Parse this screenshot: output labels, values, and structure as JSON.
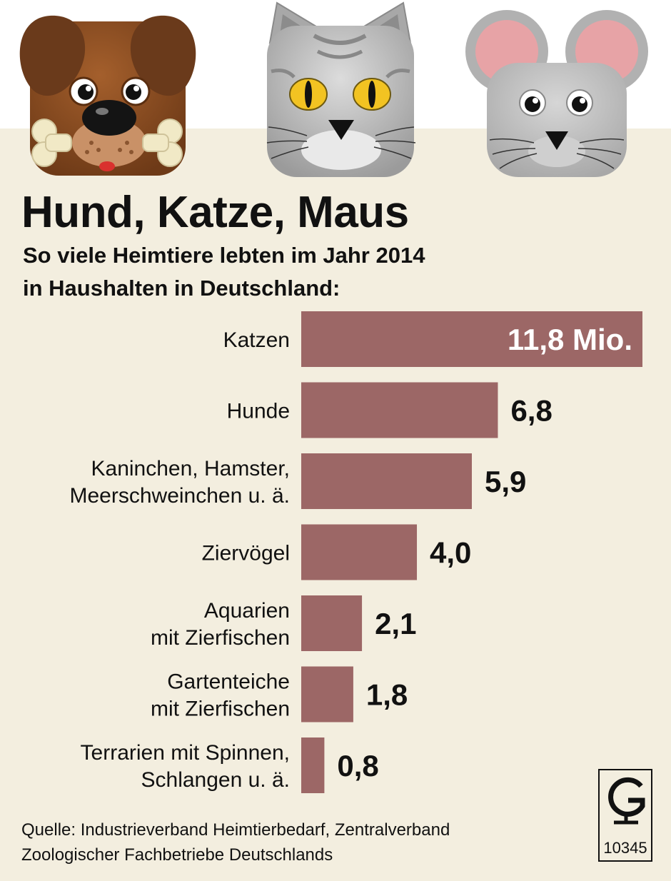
{
  "title": "Hund, Katze, Maus",
  "subtitle_lines": [
    "So viele Heimtiere lebten im Jahr 2014",
    "in Haushalten in Deutschland:"
  ],
  "chart_data": {
    "type": "bar",
    "orientation": "horizontal",
    "unit": "Mio.",
    "categories": [
      [
        "Katzen"
      ],
      [
        "Hunde"
      ],
      [
        "Kaninchen, Hamster,",
        "Meerschweinchen u. ä."
      ],
      [
        "Ziervögel"
      ],
      [
        "Aquarien",
        "mit Zierfischen"
      ],
      [
        "Gartenteiche",
        "mit Zierfischen"
      ],
      [
        "Terrarien mit Spinnen,",
        "Schlangen u. ä."
      ]
    ],
    "values": [
      11.8,
      6.8,
      5.9,
      4.0,
      2.1,
      1.8,
      0.8
    ],
    "value_labels": [
      "11,8 Mio.",
      "6,8",
      "5,9",
      "4,0",
      "2,1",
      "1,8",
      "0,8"
    ],
    "xlim": [
      0,
      11.8
    ],
    "grid": false,
    "legend": "none",
    "bar_color": "#9c6766"
  },
  "source_lines": [
    "Quelle: Industrieverband Heimtierbedarf, Zentralverband",
    "Zoologischer Fachbetriebe Deutschlands"
  ],
  "logo": {
    "number": "10345"
  },
  "colors": {
    "background": "#f3eedf",
    "bar": "#9c6766",
    "text": "#111111"
  },
  "illustrations": [
    "dog-icon",
    "cat-icon",
    "mouse-icon"
  ]
}
